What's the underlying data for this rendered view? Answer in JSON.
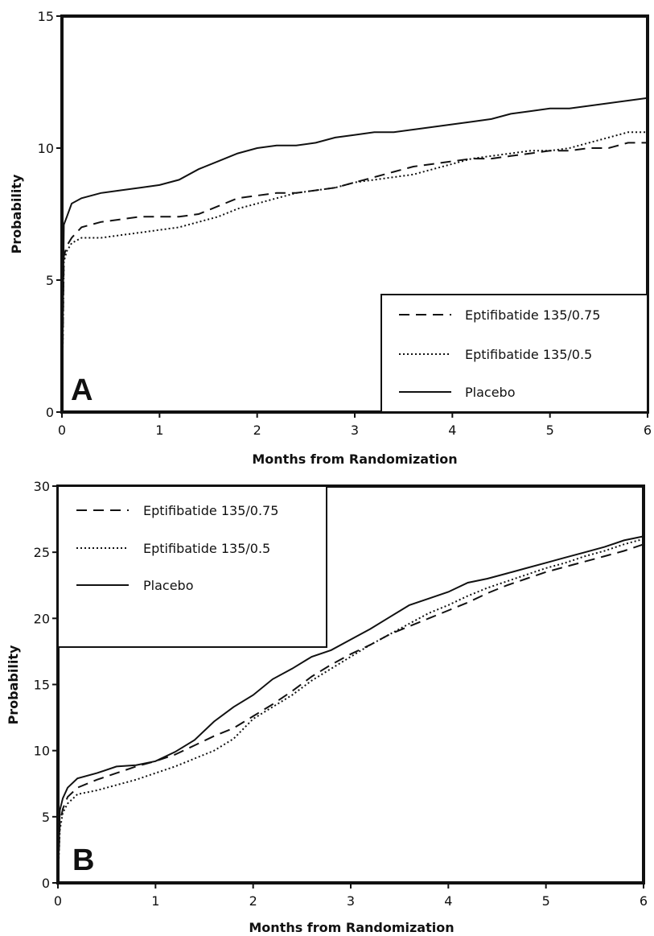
{
  "chart_data": [
    {
      "type": "line",
      "panel_label": "A",
      "xlabel": "Months from Randomization",
      "ylabel": "Probability",
      "xlim": [
        0,
        6
      ],
      "ylim": [
        0,
        15
      ],
      "x_ticks": [
        "0",
        "1",
        "2",
        "3",
        "4",
        "5",
        "6"
      ],
      "y_ticks": [
        "0",
        "5",
        "10",
        "15"
      ],
      "legend_position": "bottom-right",
      "grid": false,
      "series": [
        {
          "name": "Eptifibatide 135/0.75",
          "style": "dashed",
          "x": [
            0,
            0.02,
            0.05,
            0.1,
            0.2,
            0.4,
            0.6,
            0.8,
            1.0,
            1.2,
            1.4,
            1.6,
            1.8,
            2.0,
            2.2,
            2.4,
            2.6,
            2.8,
            3.0,
            3.2,
            3.4,
            3.6,
            3.8,
            4.0,
            4.2,
            4.4,
            4.6,
            4.8,
            5.0,
            5.2,
            5.4,
            5.6,
            5.8,
            6.0
          ],
          "y": [
            0,
            5.9,
            6.3,
            6.6,
            7.0,
            7.2,
            7.3,
            7.4,
            7.4,
            7.4,
            7.5,
            7.8,
            8.1,
            8.2,
            8.3,
            8.3,
            8.4,
            8.5,
            8.7,
            8.9,
            9.1,
            9.3,
            9.4,
            9.5,
            9.6,
            9.6,
            9.7,
            9.8,
            9.9,
            9.9,
            10.0,
            10.0,
            10.2,
            10.2
          ]
        },
        {
          "name": "Eptifibatide 135/0.5",
          "style": "dotted",
          "x": [
            0,
            0.02,
            0.05,
            0.1,
            0.2,
            0.4,
            0.6,
            0.8,
            1.0,
            1.2,
            1.4,
            1.6,
            1.8,
            2.0,
            2.2,
            2.4,
            2.6,
            2.8,
            3.0,
            3.2,
            3.4,
            3.6,
            3.8,
            4.0,
            4.2,
            4.4,
            4.6,
            4.8,
            5.0,
            5.2,
            5.4,
            5.6,
            5.8,
            6.0
          ],
          "y": [
            0,
            5.7,
            6.1,
            6.4,
            6.6,
            6.6,
            6.7,
            6.8,
            6.9,
            7.0,
            7.2,
            7.4,
            7.7,
            7.9,
            8.1,
            8.3,
            8.4,
            8.5,
            8.7,
            8.8,
            8.9,
            9.0,
            9.2,
            9.4,
            9.6,
            9.7,
            9.8,
            9.9,
            9.9,
            10.0,
            10.2,
            10.4,
            10.6,
            10.6
          ]
        },
        {
          "name": "Placebo",
          "style": "solid",
          "x": [
            0,
            0.02,
            0.05,
            0.1,
            0.2,
            0.4,
            0.6,
            0.8,
            1.0,
            1.2,
            1.4,
            1.6,
            1.8,
            2.0,
            2.2,
            2.4,
            2.6,
            2.8,
            3.0,
            3.2,
            3.4,
            3.6,
            3.8,
            4.0,
            4.2,
            4.4,
            4.6,
            4.8,
            5.0,
            5.2,
            5.4,
            5.6,
            5.8,
            6.0
          ],
          "y": [
            0,
            7.1,
            7.4,
            7.9,
            8.1,
            8.3,
            8.4,
            8.5,
            8.6,
            8.8,
            9.2,
            9.5,
            9.8,
            10.0,
            10.1,
            10.1,
            10.2,
            10.4,
            10.5,
            10.6,
            10.6,
            10.7,
            10.8,
            10.9,
            11.0,
            11.1,
            11.3,
            11.4,
            11.5,
            11.5,
            11.6,
            11.7,
            11.8,
            11.9
          ]
        }
      ]
    },
    {
      "type": "line",
      "panel_label": "B",
      "xlabel": "Months from Randomization",
      "ylabel": "Probability",
      "xlim": [
        0,
        6
      ],
      "ylim": [
        0,
        30
      ],
      "x_ticks": [
        "0",
        "1",
        "2",
        "3",
        "4",
        "5",
        "6"
      ],
      "y_ticks": [
        "0",
        "5",
        "10",
        "15",
        "20",
        "25",
        "30"
      ],
      "legend_position": "top-left",
      "grid": false,
      "series": [
        {
          "name": "Eptifibatide 135/0.75",
          "style": "dashed",
          "x": [
            0,
            0.02,
            0.05,
            0.1,
            0.2,
            0.4,
            0.6,
            0.8,
            1.0,
            1.2,
            1.4,
            1.6,
            1.8,
            2.0,
            2.2,
            2.4,
            2.6,
            2.8,
            3.0,
            3.2,
            3.4,
            3.6,
            3.8,
            4.0,
            4.2,
            4.4,
            4.6,
            4.8,
            5.0,
            5.2,
            5.4,
            5.6,
            5.8,
            6.0
          ],
          "y": [
            0,
            4.5,
            5.6,
            6.5,
            7.2,
            7.8,
            8.3,
            8.8,
            9.2,
            9.7,
            10.4,
            11.1,
            11.7,
            12.6,
            13.5,
            14.5,
            15.6,
            16.5,
            17.3,
            18.0,
            18.8,
            19.4,
            20.0,
            20.6,
            21.2,
            21.9,
            22.5,
            23.0,
            23.5,
            23.9,
            24.3,
            24.7,
            25.1,
            25.6
          ]
        },
        {
          "name": "Eptifibatide 135/0.5",
          "style": "dotted",
          "x": [
            0,
            0.02,
            0.05,
            0.1,
            0.2,
            0.4,
            0.6,
            0.8,
            1.0,
            1.2,
            1.4,
            1.6,
            1.8,
            2.0,
            2.2,
            2.4,
            2.6,
            2.8,
            3.0,
            3.2,
            3.4,
            3.6,
            3.8,
            4.0,
            4.2,
            4.4,
            4.6,
            4.8,
            5.0,
            5.2,
            5.4,
            5.6,
            5.8,
            6.0
          ],
          "y": [
            0,
            4.0,
            5.3,
            6.0,
            6.7,
            7.0,
            7.4,
            7.8,
            8.3,
            8.8,
            9.4,
            10.0,
            10.9,
            12.4,
            13.3,
            14.2,
            15.3,
            16.2,
            17.1,
            18.0,
            18.8,
            19.6,
            20.4,
            21.0,
            21.7,
            22.3,
            22.8,
            23.3,
            23.8,
            24.2,
            24.7,
            25.1,
            25.6,
            26.0
          ]
        },
        {
          "name": "Placebo",
          "style": "solid",
          "x": [
            0,
            0.02,
            0.05,
            0.1,
            0.2,
            0.4,
            0.6,
            0.8,
            1.0,
            1.2,
            1.4,
            1.6,
            1.8,
            2.0,
            2.2,
            2.4,
            2.6,
            2.8,
            3.0,
            3.2,
            3.4,
            3.6,
            3.8,
            4.0,
            4.2,
            4.4,
            4.6,
            4.8,
            5.0,
            5.2,
            5.4,
            5.6,
            5.8,
            6.0
          ],
          "y": [
            0,
            5.5,
            6.4,
            7.2,
            7.9,
            8.3,
            8.8,
            8.9,
            9.2,
            9.9,
            10.8,
            12.2,
            13.3,
            14.2,
            15.4,
            16.2,
            17.1,
            17.6,
            18.4,
            19.2,
            20.1,
            21.0,
            21.5,
            22.0,
            22.7,
            23.0,
            23.4,
            23.8,
            24.2,
            24.6,
            25.0,
            25.4,
            25.9,
            26.2
          ]
        }
      ]
    }
  ]
}
